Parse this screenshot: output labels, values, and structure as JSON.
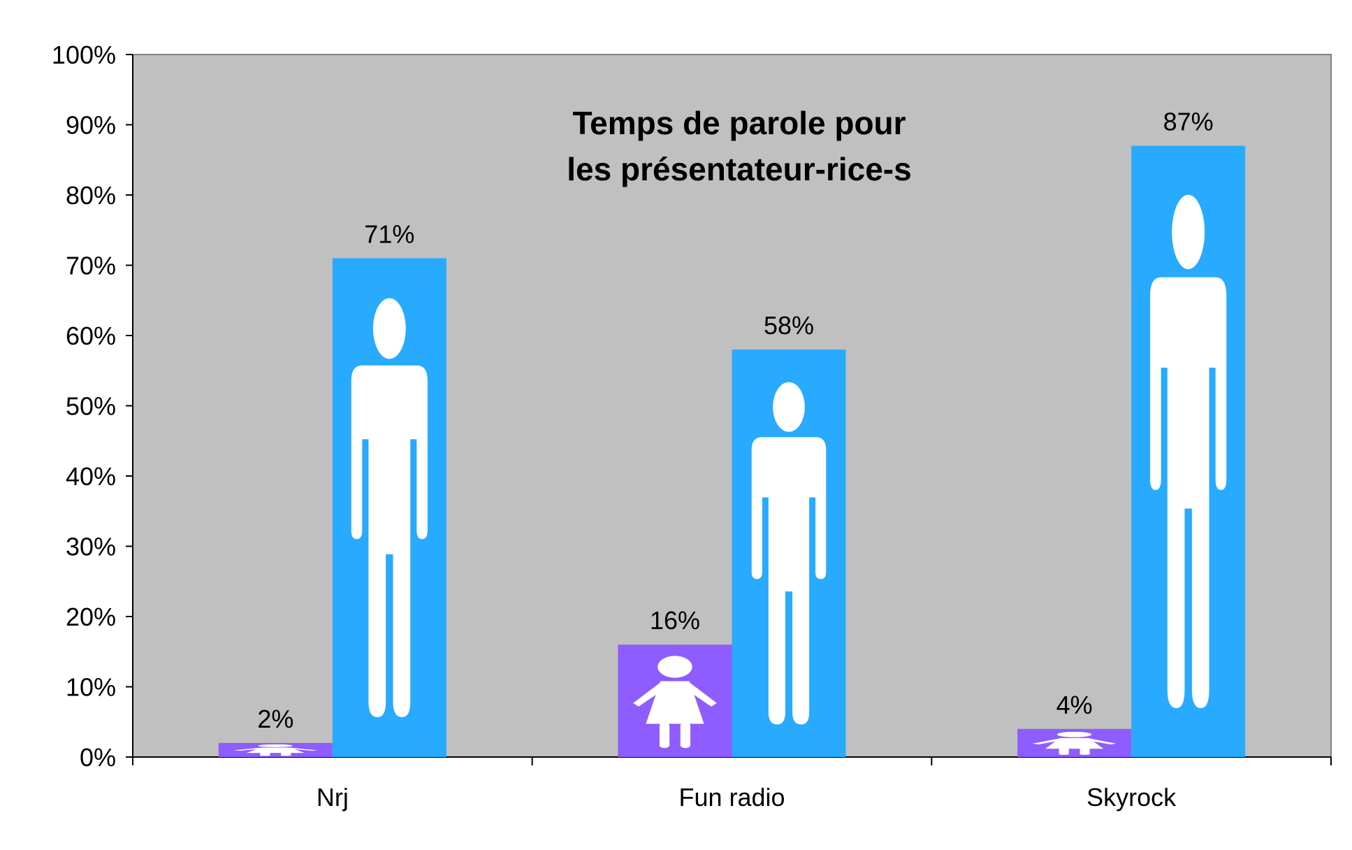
{
  "chart_data": {
    "type": "bar",
    "title_lines": [
      "Temps de parole pour",
      "les présentateur-rice-s"
    ],
    "categories": [
      "Nrj",
      "Fun radio",
      "Skyrock"
    ],
    "series": [
      {
        "values": [
          2,
          16,
          4
        ],
        "color": "#8e5cff",
        "icon": "woman-icon"
      },
      {
        "values": [
          71,
          58,
          87
        ],
        "color": "#27aaff",
        "icon": "man-icon"
      }
    ],
    "data_labels": [
      [
        "2%",
        "16%",
        "4%"
      ],
      [
        "71%",
        "58%",
        "87%"
      ]
    ],
    "y_ticks": [
      "0%",
      "10%",
      "20%",
      "30%",
      "40%",
      "50%",
      "60%",
      "70%",
      "80%",
      "90%",
      "100%"
    ],
    "ylim": [
      0,
      100
    ],
    "plot_background": "#c0c0c0",
    "xlabel": "",
    "ylabel": "",
    "grid": false,
    "legend": "none"
  }
}
